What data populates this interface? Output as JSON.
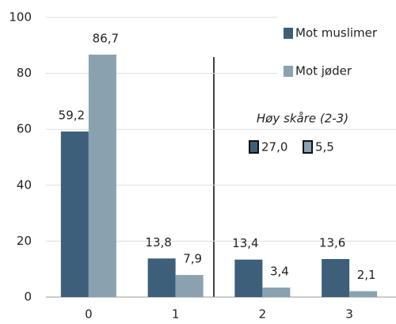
{
  "chart_data": {
    "type": "bar",
    "categories": [
      "0",
      "1",
      "2",
      "3"
    ],
    "series": [
      {
        "name": "Mot muslimer",
        "color": "#3d5f7a",
        "values": [
          59.2,
          13.8,
          13.4,
          13.6
        ],
        "value_labels": [
          "59,2",
          "13,8",
          "13,4",
          "13,6"
        ]
      },
      {
        "name": "Mot jøder",
        "color": "#8aa2b0",
        "values": [
          86.7,
          7.9,
          3.4,
          2.1
        ],
        "value_labels": [
          "86,7",
          "7,9",
          "3,4",
          "2,1"
        ]
      }
    ],
    "ylim": [
      0,
      100
    ],
    "yticks": [
      0,
      20,
      40,
      60,
      80,
      100
    ],
    "grid": true,
    "legend": "top-right",
    "annotation": {
      "title": "Høy skåre (2-3)",
      "values": [
        27.0,
        5.5
      ],
      "value_labels": [
        "27,0",
        "5,5"
      ]
    }
  }
}
